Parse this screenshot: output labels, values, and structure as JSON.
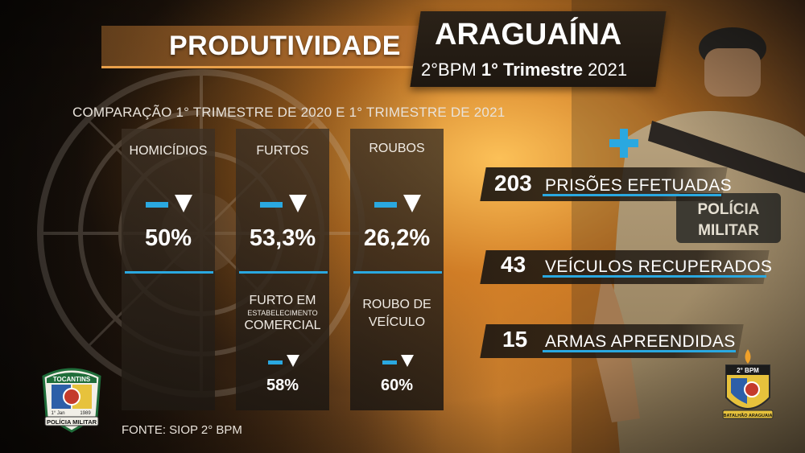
{
  "header": {
    "title": "PRODUTIVIDADE",
    "city": "ARAGUAÍNA",
    "unit": "2°BPM",
    "period": "1° Trimestre",
    "year": "2021"
  },
  "comparison_label": "COMPARAÇÃO 1° TRIMESTRE DE 2020 E 1° TRIMESTRE DE 2021",
  "columns": [
    {
      "label": "HOMICÍDIOS",
      "value": "50%"
    },
    {
      "label": "FURTOS",
      "value": "53,3%",
      "sub_label_1": "FURTO EM",
      "sub_label_small": "ESTABELECIMENTO",
      "sub_label_2": "COMERCIAL",
      "sub_value": "58%"
    },
    {
      "label": "ROUBOS",
      "value": "26,2%",
      "sub_label_1": "ROUBO DE",
      "sub_label_2": "VEÍCULO",
      "sub_value": "60%"
    }
  ],
  "source": "FONTE: SIOP 2° BPM",
  "stats": [
    {
      "number": "203",
      "label": "PRISÕES EFETUADAS"
    },
    {
      "number": "43",
      "label": "VEÍCULOS RECUPERADOS"
    },
    {
      "number": "15",
      "label": "ARMAS APREENDIDAS"
    }
  ],
  "badges": {
    "left_top": "TOCANTINS",
    "left_date": "1° Jan",
    "left_year": "1989",
    "left_bottom": "POLÍCIA MILITAR",
    "right_top": "2° BPM",
    "right_bottom": "BATALHÃO ARAGUAIA"
  },
  "officer_patch": {
    "line1": "POLÍCIA",
    "line2": "MILITAR"
  },
  "colors": {
    "accent": "#2aa8e0",
    "orange": "#e9a04a",
    "dark_panel": "#1e1710"
  }
}
